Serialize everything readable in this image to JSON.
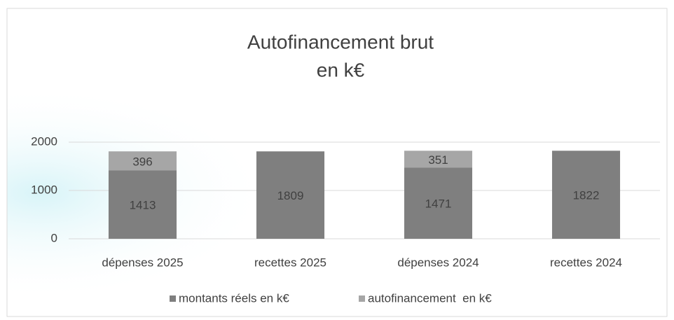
{
  "chart_data": {
    "type": "stacked_bar",
    "title": "Autofinancement brut",
    "subtitle": "en k€",
    "categories": [
      "dépenses 2025",
      "recettes 2025",
      "dépenses 2024",
      "recettes 2024"
    ],
    "series": [
      {
        "name": "montants réels en k€",
        "color": "#7f7f7f",
        "values": [
          1413,
          1809,
          1471,
          1822
        ]
      },
      {
        "name": "autofinancement  en k€",
        "color": "#a6a6a6",
        "values": [
          396,
          null,
          351,
          null
        ]
      }
    ],
    "ylim": [
      0,
      2000
    ],
    "yticks": [
      0,
      1000,
      2000
    ],
    "grid": true,
    "legend": "bottom"
  }
}
